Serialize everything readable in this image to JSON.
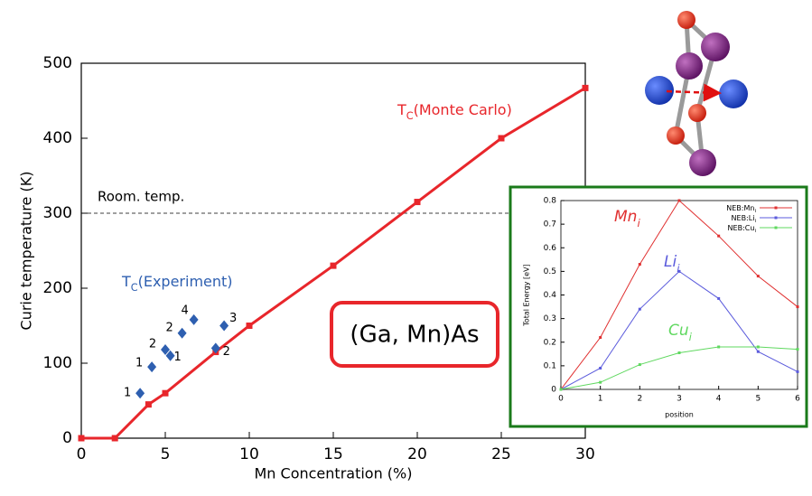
{
  "chart_data": [
    {
      "type": "line",
      "x_label": "Mn Concentration (%)",
      "y_label": "Curie temperature (K)",
      "xlim": [
        0,
        30
      ],
      "xticks": [
        0,
        5,
        10,
        15,
        20,
        25,
        30
      ],
      "ylim": [
        0,
        500
      ],
      "yticks": [
        0,
        100,
        200,
        300,
        400,
        500
      ],
      "reference_lines": [
        {
          "value": 300,
          "label": "Room. temp."
        }
      ],
      "series": [
        {
          "type": "line",
          "symbol": "T",
          "symbol_sub": "C",
          "name": "(Monte Carlo)",
          "color": "#e8262b",
          "x": [
            0,
            2,
            4,
            5,
            8,
            10,
            15,
            20,
            25,
            30
          ],
          "values": [
            0,
            0,
            45,
            60,
            115,
            150,
            230,
            315,
            400,
            467
          ]
        },
        {
          "type": "scatter",
          "symbol": "T",
          "symbol_sub": "C",
          "name": "(Experiment)",
          "color": "#2e5fb0",
          "x": [
            3.5,
            4.2,
            5,
            5.3,
            6,
            6.7,
            8.5,
            8
          ],
          "values": [
            60,
            95,
            118,
            110,
            140,
            158,
            150,
            120
          ],
          "point_labels": [
            1,
            1,
            2,
            1,
            2,
            4,
            3,
            2
          ]
        }
      ],
      "annotation": "(Ga, Mn)As"
    },
    {
      "type": "line",
      "x_label": "position",
      "y_label": "Total Energy [eV]",
      "x": [
        0,
        1,
        2,
        3,
        4,
        5,
        6
      ],
      "xlim": [
        0,
        6
      ],
      "xticks": [
        0,
        1,
        2,
        3,
        4,
        5,
        6
      ],
      "ylim": [
        0,
        0.8
      ],
      "yticks": [
        0,
        0.1,
        0.2,
        0.3,
        0.4,
        0.5,
        0.6,
        0.7,
        0.8
      ],
      "legend": "upper right",
      "series": [
        {
          "name": "NEB:Mn",
          "name_sub": "i",
          "label": "Mn",
          "label_sub": "i",
          "color": "#e03030",
          "values": [
            0,
            0.22,
            0.53,
            0.8,
            0.65,
            0.48,
            0.35
          ]
        },
        {
          "name": "NEB:Li",
          "name_sub": "i",
          "label": "Li",
          "label_sub": "i",
          "color": "#5b5bdc",
          "values": [
            0,
            0.09,
            0.34,
            0.5,
            0.385,
            0.16,
            0.075
          ]
        },
        {
          "name": "NEB:Cu",
          "name_sub": "i",
          "label": "Cu",
          "label_sub": "i",
          "color": "#5fd85f",
          "values": [
            0,
            0.03,
            0.105,
            0.155,
            0.18,
            0.18,
            0.17
          ]
        }
      ]
    }
  ]
}
